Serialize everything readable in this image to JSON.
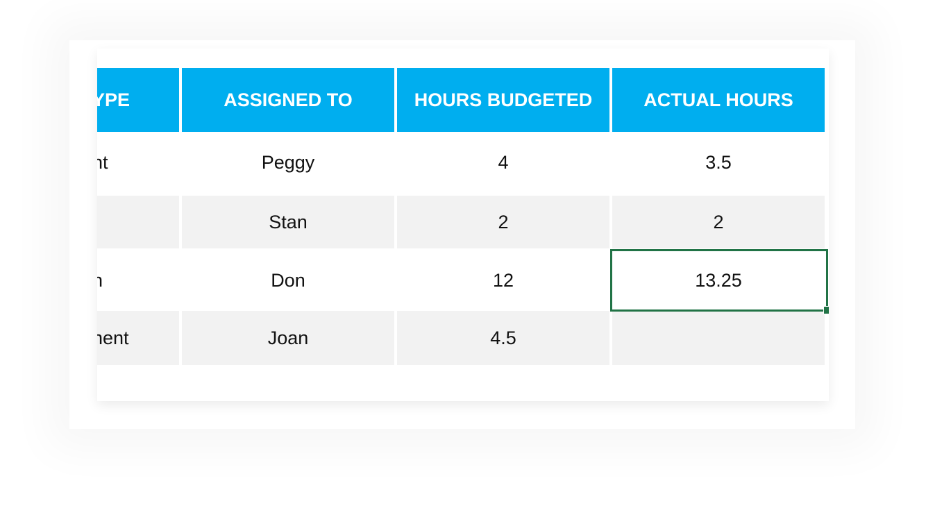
{
  "table": {
    "header": [
      "YPE",
      "ASSIGNED TO",
      "HOURS BUDGETED",
      "ACTUAL HOURS"
    ],
    "rows": [
      [
        "nt",
        "Peggy",
        4,
        3.5
      ],
      [
        null,
        "Stan",
        2,
        2
      ],
      [
        "n",
        "Don",
        12,
        13.25
      ],
      [
        "nent",
        "Joan",
        4.5,
        null
      ]
    ]
  }
}
